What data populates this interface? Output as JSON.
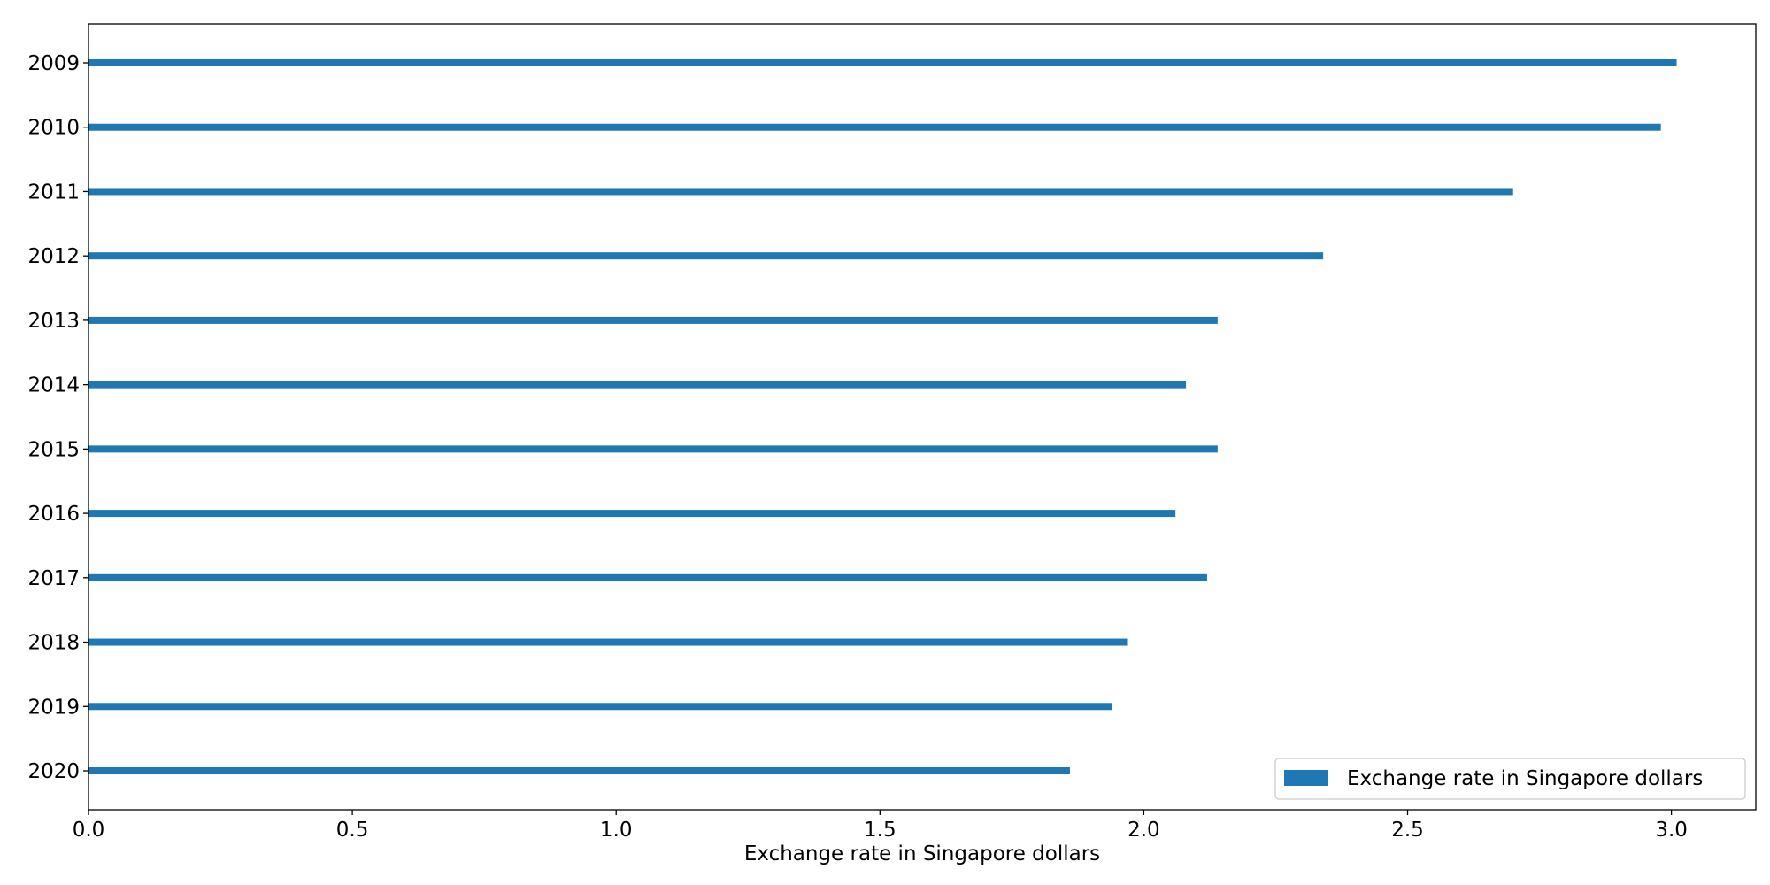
{
  "chart_data": {
    "type": "bar",
    "orientation": "horizontal",
    "categories": [
      "2009",
      "2010",
      "2011",
      "2012",
      "2013",
      "2014",
      "2015",
      "2016",
      "2017",
      "2018",
      "2019",
      "2020"
    ],
    "series": [
      {
        "name": "Exchange rate in Singapore dollars",
        "values": [
          3.01,
          2.98,
          2.7,
          2.34,
          2.14,
          2.08,
          2.14,
          2.06,
          2.12,
          1.97,
          1.94,
          1.86
        ],
        "color": "#1f77b4"
      }
    ],
    "title": "",
    "xlabel": "Exchange rate in Singapore dollars",
    "ylabel": "",
    "xlim": [
      0,
      3.16
    ],
    "xticks": [
      "0.0",
      "0.5",
      "1.0",
      "1.5",
      "2.0",
      "2.5",
      "3.0"
    ],
    "grid": false,
    "legend_position": "lower-right"
  }
}
